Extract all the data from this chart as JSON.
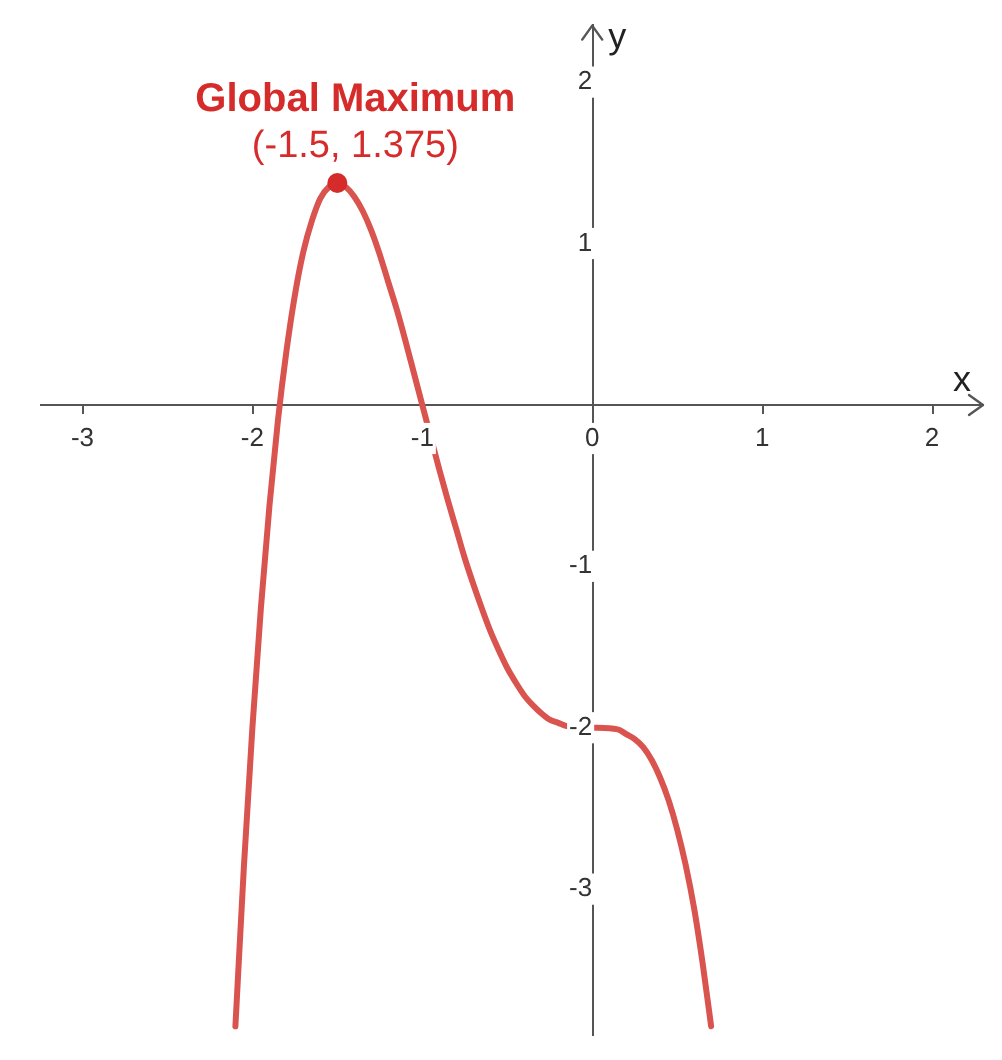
{
  "chart_data": {
    "type": "line",
    "xlabel": "x",
    "ylabel": "y",
    "xlim": [
      -3.25,
      2.3
    ],
    "ylim": [
      -3.9,
      2.35
    ],
    "xticks": [
      -3,
      -2,
      -1,
      0,
      1,
      2
    ],
    "yticks": [
      -3,
      -2,
      -1,
      1,
      2
    ],
    "grid": false,
    "legend": false,
    "marker": "none",
    "series": [
      {
        "color": "#d9534f",
        "x": [
          -2.1,
          -2.05,
          -2,
          -1.95,
          -1.9,
          -1.85,
          -1.8,
          -1.75,
          -1.7,
          -1.65,
          -1.6,
          -1.55,
          -1.5,
          -1.45,
          -1.4,
          -1.35,
          -1.3,
          -1.25,
          -1.2,
          -1.15,
          -1.1,
          -1.05,
          -1,
          -0.9,
          -0.85,
          -0.8,
          -0.75,
          -0.7,
          -0.65,
          -0.6,
          -0.55,
          -0.5,
          -0.45,
          -0.4,
          -0.35,
          -0.3,
          -0.25,
          -0.2,
          -0.15,
          0,
          0.15,
          0.2,
          0.25,
          0.3,
          0.35,
          0.4,
          0.45,
          0.5,
          0.55,
          0.6,
          0.65,
          0.7
        ],
        "values": [
          -3.85,
          -2.86,
          -2,
          -1.26,
          -0.63,
          -0.1,
          0.33,
          0.68,
          0.95,
          1.14,
          1.28,
          1.35,
          1.375,
          1.35,
          1.29,
          1.2,
          1.08,
          0.93,
          0.76,
          0.59,
          0.4,
          0.2,
          0,
          -0.4,
          -0.59,
          -0.77,
          -0.95,
          -1.11,
          -1.26,
          -1.4,
          -1.52,
          -1.63,
          -1.72,
          -1.8,
          -1.86,
          -1.91,
          -1.95,
          -1.97,
          -1.99,
          -2,
          -2.01,
          -2.04,
          -2.07,
          -2.12,
          -2.2,
          -2.31,
          -2.45,
          -2.63,
          -2.85,
          -3.12,
          -3.46,
          -3.85
        ]
      },
      {
        "type": "scatter",
        "color": "#d62b2b",
        "marker": "circle",
        "x": [
          -1.5
        ],
        "values": [
          1.375
        ]
      }
    ],
    "annotations": [
      {
        "text": "Global Maximum",
        "x": -1.5,
        "y": 1.375
      },
      {
        "text": "(-1.5, 1.375)",
        "x": -1.5,
        "y": 1.375
      }
    ]
  }
}
